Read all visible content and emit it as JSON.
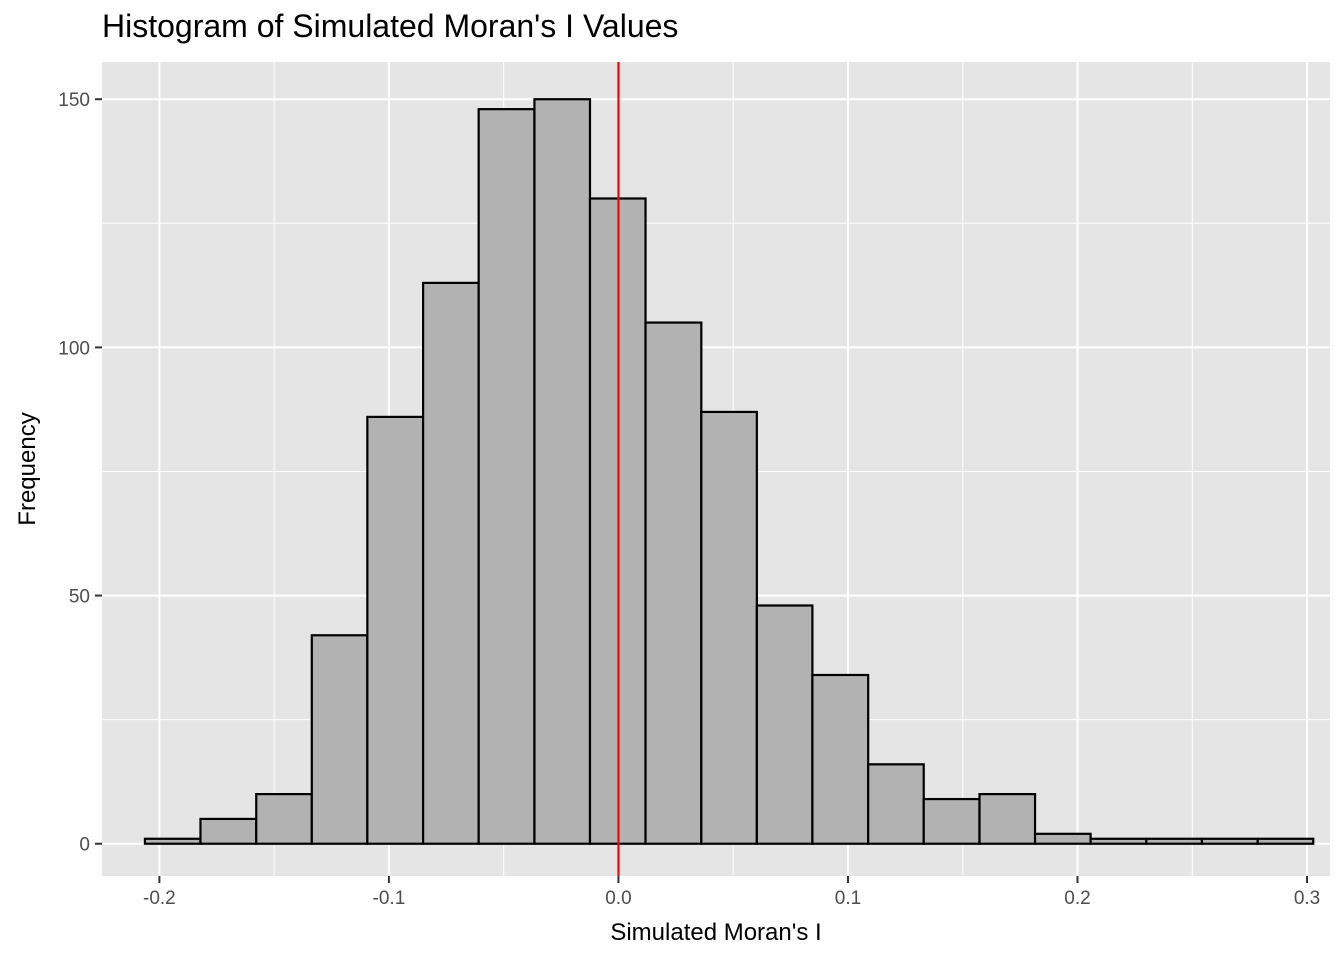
{
  "chart_data": {
    "type": "bar",
    "title": "Histogram of Simulated Moran's I Values",
    "xlabel": "Simulated Moran's I",
    "ylabel": "Frequency",
    "xlim": [
      -0.225,
      0.31
    ],
    "ylim": [
      -6.5,
      157.5
    ],
    "x_ticks": [
      -0.2,
      -0.1,
      0.0,
      0.1,
      0.2,
      0.3
    ],
    "x_tick_labels": [
      "-0.2",
      "-0.1",
      "0.0",
      "0.1",
      "0.2",
      "0.3"
    ],
    "y_ticks": [
      0,
      50,
      100,
      150
    ],
    "y_tick_labels": [
      "0",
      "50",
      "100",
      "150"
    ],
    "bin_edges": [
      -0.2063,
      -0.1821,
      -0.1578,
      -0.1336,
      -0.1094,
      -0.0851,
      -0.0609,
      -0.0366,
      -0.0124,
      0.0118,
      0.0361,
      0.0603,
      0.0845,
      0.1088,
      0.133,
      0.1573,
      0.1815,
      0.2057,
      0.23,
      0.2542,
      0.2785,
      0.3027
    ],
    "counts": [
      1,
      5,
      10,
      42,
      86,
      113,
      148,
      150,
      130,
      105,
      87,
      48,
      34,
      16,
      9,
      10,
      2,
      1,
      1,
      1,
      1
    ],
    "reference_line": {
      "x": 0.0,
      "color": "#ff0000"
    },
    "colors": {
      "panel": "#e5e5e5",
      "grid": "#ffffff",
      "bar_fill": "#b2b2b2",
      "bar_stroke": "#000000"
    },
    "grid": true,
    "legend": "none"
  }
}
